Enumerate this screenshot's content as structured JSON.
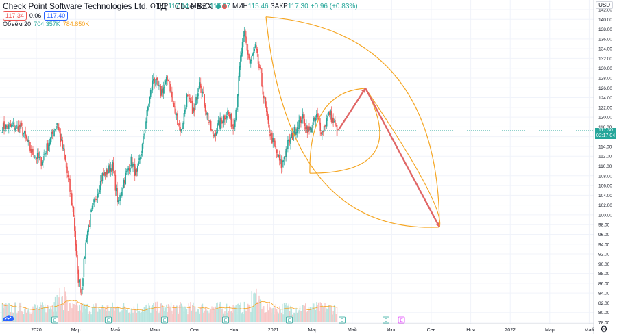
{
  "header": {
    "symbol": "Check Point Software Technologies Ltd.",
    "interval": "1Д",
    "exchange": "Cboe BZX",
    "ohlc": {
      "open_label": "ОТКР",
      "open": "117.14",
      "high_label": "МАКС",
      "high": "117.97",
      "low_label": "МИН",
      "low": "115.46",
      "close_label": "ЗАКР",
      "close": "117.30",
      "change": "+0.96 (+0.83%)"
    },
    "sell_price": "117.34",
    "spread": "0.06",
    "buy_price": "117.40",
    "volume_label": "Объём 20",
    "volume_value": "704.357K",
    "volume_ma": "784.850K"
  },
  "currency_button": "USD",
  "last_price_tag": {
    "price": "117.30",
    "countdown": "02:17:04"
  },
  "colors": {
    "up": "#26a69a",
    "down": "#ef5350",
    "drawing_orange": "#f5a623",
    "drawing_arrow": "#e06666",
    "volume_ma": "#f7a21b",
    "earnings": "#26a69a"
  },
  "icons": {
    "settings": "gear-icon",
    "logo": "tradingview-logo-icon"
  },
  "chart_data": {
    "type": "candlestick",
    "price_axis": {
      "min": 78,
      "max": 142,
      "step": 2,
      "labels": [
        "78.00",
        "80.00",
        "82.00",
        "84.00",
        "86.00",
        "88.00",
        "90.00",
        "92.00",
        "94.00",
        "96.00",
        "98.00",
        "100.00",
        "102.00",
        "104.00",
        "106.00",
        "108.00",
        "110.00",
        "112.00",
        "114.00",
        "116.00",
        "118.00",
        "120.00",
        "122.00",
        "124.00",
        "126.00",
        "128.00",
        "130.00",
        "132.00",
        "134.00",
        "136.00",
        "138.00",
        "140.00",
        "142.00"
      ]
    },
    "time_axis": {
      "labels": [
        "2020",
        "Мар",
        "Май",
        "Июл",
        "Сен",
        "Ноя",
        "2021",
        "Мар",
        "Май",
        "Июл",
        "Сен",
        "Ноя",
        "2022",
        "Мар",
        "Май"
      ]
    },
    "segments": [
      {
        "months": 1.0,
        "price": 118
      },
      {
        "months": 0.5,
        "price": 113
      },
      {
        "months": 0.5,
        "price": 111
      },
      {
        "months": 0.5,
        "price": 116
      },
      {
        "months": 0.3,
        "price": 119
      },
      {
        "months": 0.4,
        "price": 112
      },
      {
        "months": 0.3,
        "price": 105
      },
      {
        "months": 0.2,
        "price": 100
      },
      {
        "months": 0.2,
        "price": 88
      },
      {
        "months": 0.2,
        "price": 84
      },
      {
        "months": 0.3,
        "price": 96
      },
      {
        "months": 0.3,
        "price": 101
      },
      {
        "months": 0.5,
        "price": 108
      },
      {
        "months": 0.5,
        "price": 110
      },
      {
        "months": 0.3,
        "price": 102
      },
      {
        "months": 0.3,
        "price": 107
      },
      {
        "months": 0.4,
        "price": 111
      },
      {
        "months": 0.3,
        "price": 108
      },
      {
        "months": 0.3,
        "price": 114
      },
      {
        "months": 0.3,
        "price": 122
      },
      {
        "months": 0.3,
        "price": 128
      },
      {
        "months": 0.4,
        "price": 125
      },
      {
        "months": 0.4,
        "price": 128
      },
      {
        "months": 0.3,
        "price": 122
      },
      {
        "months": 0.4,
        "price": 117
      },
      {
        "months": 0.3,
        "price": 124
      },
      {
        "months": 0.4,
        "price": 121
      },
      {
        "months": 0.3,
        "price": 128
      },
      {
        "months": 0.3,
        "price": 122
      },
      {
        "months": 0.4,
        "price": 116
      },
      {
        "months": 0.4,
        "price": 119
      },
      {
        "months": 0.4,
        "price": 121
      },
      {
        "months": 0.3,
        "price": 118
      },
      {
        "months": 0.2,
        "price": 123
      },
      {
        "months": 0.2,
        "price": 132
      },
      {
        "months": 0.2,
        "price": 137
      },
      {
        "months": 0.3,
        "price": 131
      },
      {
        "months": 0.3,
        "price": 134
      },
      {
        "months": 0.3,
        "price": 128
      },
      {
        "months": 0.4,
        "price": 118
      },
      {
        "months": 0.4,
        "price": 113
      },
      {
        "months": 0.3,
        "price": 110
      },
      {
        "months": 0.3,
        "price": 114
      },
      {
        "months": 0.4,
        "price": 117
      },
      {
        "months": 0.4,
        "price": 120
      },
      {
        "months": 0.4,
        "price": 117
      },
      {
        "months": 0.4,
        "price": 120
      },
      {
        "months": 0.3,
        "price": 117
      },
      {
        "months": 0.4,
        "price": 121
      },
      {
        "months": 0.4,
        "price": 117
      }
    ],
    "earnings_markers": [
      "Янв",
      "Апр",
      "Июл",
      "Окт",
      "Янв",
      "Апр",
      "Июл"
    ],
    "dividend_marker": "Июл",
    "drawings": {
      "arrow_points": [
        {
          "date_months": 17.3,
          "price": 117.3
        },
        {
          "date_months": 18.7,
          "price": 125.9
        },
        {
          "date_months": 22.5,
          "price": 97.5
        }
      ],
      "outer_arc_top": 140.5,
      "inner_arc_bottom": 108.5
    }
  }
}
